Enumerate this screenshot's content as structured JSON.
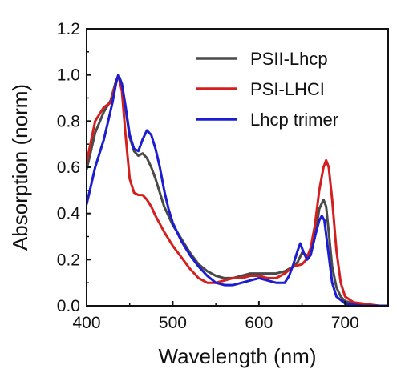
{
  "chart_data": {
    "type": "line",
    "xlabel": "Wavelength (nm)",
    "ylabel": "Absorption (norm)",
    "xlim": [
      400,
      750
    ],
    "ylim": [
      0.0,
      1.2
    ],
    "xticks": [
      400,
      500,
      600,
      700
    ],
    "xtick_labels": [
      "400",
      "500",
      "600",
      "700"
    ],
    "yticks": [
      0.0,
      0.2,
      0.4,
      0.6,
      0.8,
      1.0,
      1.2
    ],
    "ytick_labels": [
      "0.0",
      "0.2",
      "0.4",
      "0.6",
      "0.8",
      "1.0",
      "1.2"
    ],
    "legend_position": "top-right",
    "series": [
      {
        "name": "PSII-Lhcp",
        "color": "#4a4a4a",
        "x": [
          400,
          410,
          420,
          428,
          433,
          437,
          441,
          445,
          450,
          455,
          460,
          465,
          470,
          475,
          480,
          485,
          490,
          500,
          510,
          520,
          530,
          540,
          550,
          560,
          570,
          580,
          590,
          600,
          610,
          620,
          630,
          640,
          645,
          650,
          655,
          660,
          665,
          670,
          675,
          678,
          681,
          685,
          690,
          695,
          700,
          710,
          720,
          730,
          740,
          750
        ],
        "y": [
          0.59,
          0.75,
          0.84,
          0.89,
          0.96,
          1.0,
          0.96,
          0.86,
          0.73,
          0.67,
          0.65,
          0.66,
          0.64,
          0.6,
          0.55,
          0.49,
          0.43,
          0.35,
          0.29,
          0.23,
          0.18,
          0.15,
          0.13,
          0.12,
          0.12,
          0.13,
          0.14,
          0.14,
          0.14,
          0.14,
          0.15,
          0.17,
          0.19,
          0.23,
          0.22,
          0.22,
          0.3,
          0.42,
          0.46,
          0.43,
          0.32,
          0.17,
          0.08,
          0.04,
          0.02,
          0.01,
          0.005,
          0.0,
          0.0,
          0.0
        ]
      },
      {
        "name": "PSI-LHCI",
        "color": "#d41f1f",
        "x": [
          400,
          410,
          420,
          428,
          433,
          437,
          441,
          445,
          450,
          455,
          460,
          465,
          470,
          475,
          480,
          490,
          500,
          510,
          520,
          530,
          540,
          550,
          560,
          570,
          580,
          590,
          600,
          610,
          620,
          630,
          640,
          650,
          655,
          660,
          665,
          670,
          675,
          678,
          681,
          685,
          690,
          695,
          700,
          710,
          720,
          730,
          740,
          750
        ],
        "y": [
          0.62,
          0.8,
          0.86,
          0.88,
          0.95,
          1.0,
          0.93,
          0.75,
          0.55,
          0.49,
          0.48,
          0.48,
          0.46,
          0.43,
          0.39,
          0.32,
          0.26,
          0.21,
          0.16,
          0.12,
          0.1,
          0.1,
          0.11,
          0.12,
          0.12,
          0.13,
          0.13,
          0.12,
          0.12,
          0.14,
          0.17,
          0.18,
          0.2,
          0.25,
          0.35,
          0.5,
          0.6,
          0.63,
          0.6,
          0.46,
          0.24,
          0.1,
          0.04,
          0.015,
          0.01,
          0.005,
          0.0,
          0.0
        ]
      },
      {
        "name": "Lhcp trimer",
        "color": "#1c1cd0",
        "x": [
          400,
          405,
          410,
          415,
          420,
          425,
          430,
          435,
          437,
          441,
          445,
          450,
          455,
          460,
          465,
          470,
          475,
          480,
          485,
          490,
          495,
          500,
          510,
          520,
          530,
          540,
          550,
          560,
          570,
          580,
          590,
          600,
          610,
          620,
          630,
          635,
          640,
          645,
          648,
          652,
          656,
          660,
          665,
          670,
          673,
          676,
          680,
          685,
          690,
          700,
          710,
          720,
          730,
          750
        ],
        "y": [
          0.44,
          0.52,
          0.6,
          0.66,
          0.72,
          0.8,
          0.88,
          0.98,
          1.0,
          0.96,
          0.87,
          0.74,
          0.68,
          0.67,
          0.72,
          0.76,
          0.74,
          0.68,
          0.6,
          0.5,
          0.42,
          0.36,
          0.28,
          0.22,
          0.17,
          0.13,
          0.1,
          0.09,
          0.09,
          0.1,
          0.11,
          0.12,
          0.11,
          0.1,
          0.1,
          0.13,
          0.18,
          0.24,
          0.27,
          0.23,
          0.2,
          0.22,
          0.3,
          0.37,
          0.39,
          0.37,
          0.25,
          0.1,
          0.04,
          0.01,
          0.005,
          0.0,
          0.0,
          0.0
        ]
      }
    ]
  }
}
